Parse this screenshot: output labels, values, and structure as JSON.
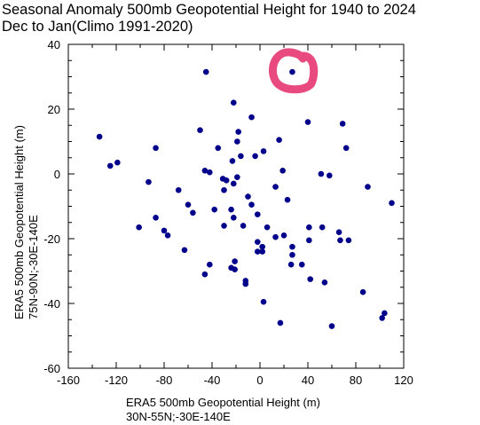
{
  "title": {
    "line1": "Seasonal Anomaly 500mb Geopotential Height for 1940 to 2024",
    "line2": "Dec to Jan(Climo 1991-2020)"
  },
  "colors": {
    "point": "#00008b",
    "marker": "#e84a7f",
    "axis": "#000000"
  },
  "chart_data": {
    "type": "scatter",
    "xlabel": [
      "ERA5 500mb Geopotential Height (m)",
      "30N-55N;-30E-140E"
    ],
    "ylabel": [
      "ERA5 500mb Geopotential Height (m)",
      "75N-90N;-30E-140E"
    ],
    "xlim": [
      -160,
      120
    ],
    "ylim": [
      -60,
      40
    ],
    "xticks": [
      -160,
      -120,
      -80,
      -40,
      0,
      40,
      80,
      120
    ],
    "yticks": [
      -60,
      -40,
      -20,
      0,
      20,
      40
    ],
    "xtick_labels": [
      "-160",
      "-120",
      "-80",
      "-40",
      "0",
      "40",
      "80",
      "120"
    ],
    "ytick_labels": [
      "-60",
      "-40",
      "-20",
      "0",
      "20",
      "40"
    ],
    "grid": false,
    "highlight": {
      "x": 27,
      "y": 31.5,
      "shape": "circle"
    },
    "points": [
      [
        27,
        31.5
      ],
      [
        -45,
        31.5
      ],
      [
        -22,
        22
      ],
      [
        -50,
        13.5
      ],
      [
        -18,
        13
      ],
      [
        -7,
        17.5
      ],
      [
        -134,
        11.5
      ],
      [
        -87,
        8
      ],
      [
        -19,
        10
      ],
      [
        -35,
        8
      ],
      [
        -4,
        5.5
      ],
      [
        -16,
        5.5
      ],
      [
        3,
        7
      ],
      [
        16,
        10.5
      ],
      [
        40,
        16
      ],
      [
        69,
        15.5
      ],
      [
        72,
        8
      ],
      [
        -125,
        2.5
      ],
      [
        -119,
        3.5
      ],
      [
        -93,
        -2.5
      ],
      [
        -46,
        1
      ],
      [
        -42,
        0.5
      ],
      [
        -23,
        4
      ],
      [
        -28,
        -2
      ],
      [
        -19,
        -1
      ],
      [
        -22,
        -3
      ],
      [
        -30,
        -5
      ],
      [
        -31,
        -1.5
      ],
      [
        19,
        1
      ],
      [
        51,
        0
      ],
      [
        58,
        -0.5
      ],
      [
        90,
        -4
      ],
      [
        110,
        -9
      ],
      [
        -68,
        -5
      ],
      [
        -60,
        -9.5
      ],
      [
        -56,
        -12
      ],
      [
        -10,
        -7
      ],
      [
        -7,
        -9.5
      ],
      [
        13,
        -4
      ],
      [
        23,
        -8
      ],
      [
        -38,
        -11
      ],
      [
        -24,
        -11
      ],
      [
        -22,
        -13.5
      ],
      [
        -2,
        -12.5
      ],
      [
        6,
        -16.5
      ],
      [
        -87,
        -13.5
      ],
      [
        -101,
        -16.5
      ],
      [
        -80,
        -17.5
      ],
      [
        -77,
        -19
      ],
      [
        -14,
        -16
      ],
      [
        -30,
        -16
      ],
      [
        -2,
        -21
      ],
      [
        2,
        -22.5
      ],
      [
        13,
        -19.5
      ],
      [
        20,
        -19
      ],
      [
        41,
        -16.5
      ],
      [
        52,
        -16.5
      ],
      [
        66,
        -18
      ],
      [
        67,
        -20.5
      ],
      [
        74,
        -20.5
      ],
      [
        41,
        -20.5
      ],
      [
        27,
        -22.5
      ],
      [
        -2,
        -24
      ],
      [
        2,
        -24
      ],
      [
        27,
        -25
      ],
      [
        -63,
        -23.5
      ],
      [
        -42,
        -28
      ],
      [
        -21,
        -27
      ],
      [
        -21,
        -29.5
      ],
      [
        -24,
        -29
      ],
      [
        26,
        -28
      ],
      [
        35,
        -28
      ],
      [
        -46,
        -31
      ],
      [
        -12,
        -33
      ],
      [
        -12,
        -34
      ],
      [
        42,
        -32.5
      ],
      [
        54,
        -33.5
      ],
      [
        86,
        -36.5
      ],
      [
        3,
        -39.5
      ],
      [
        104,
        -43
      ],
      [
        102,
        -44.5
      ],
      [
        17,
        -46
      ],
      [
        60,
        -47
      ]
    ]
  }
}
